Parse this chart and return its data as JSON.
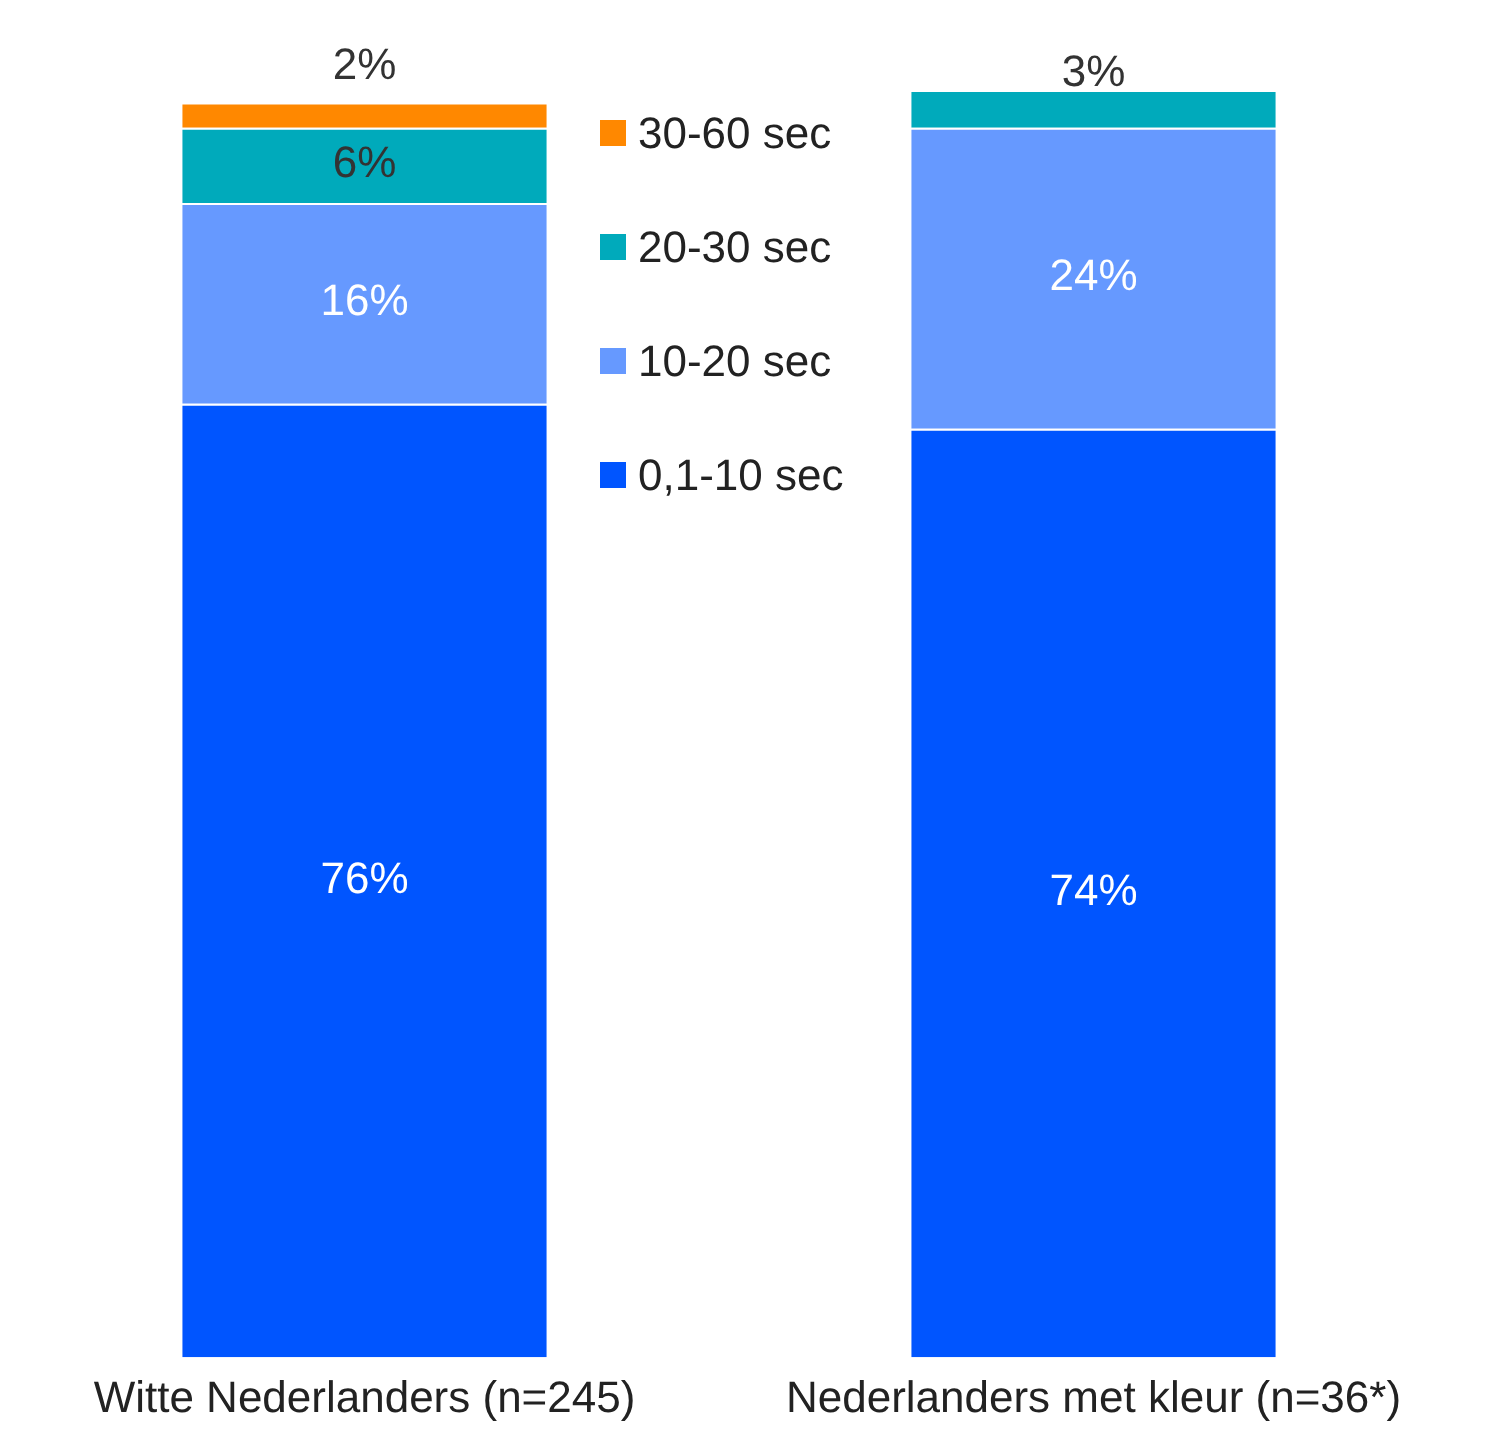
{
  "chart_data": {
    "type": "bar",
    "stacked": true,
    "categories": [
      "Witte Nederlanders (n=245)",
      "Nederlanders met kleur (n=36*)"
    ],
    "ylim": [
      0,
      101
    ],
    "tick_labels": "x",
    "grid": false,
    "legend": "top",
    "series": [
      {
        "name": "0,1-10 sec",
        "color": "#0055ff",
        "values": [
          76,
          74
        ],
        "value_labels": [
          "76%",
          "74%"
        ]
      },
      {
        "name": "10-20 sec",
        "color": "#6699ff",
        "values": [
          16,
          24
        ],
        "value_labels": [
          "16%",
          "24%"
        ]
      },
      {
        "name": "20-30 sec",
        "color": "#00aabb",
        "values": [
          6,
          3
        ],
        "value_labels": [
          "6%",
          "3%"
        ]
      },
      {
        "name": "30-60 sec",
        "color": "#ff8800",
        "values": [
          2,
          null
        ],
        "value_labels": [
          "2%",
          null
        ]
      }
    ]
  }
}
